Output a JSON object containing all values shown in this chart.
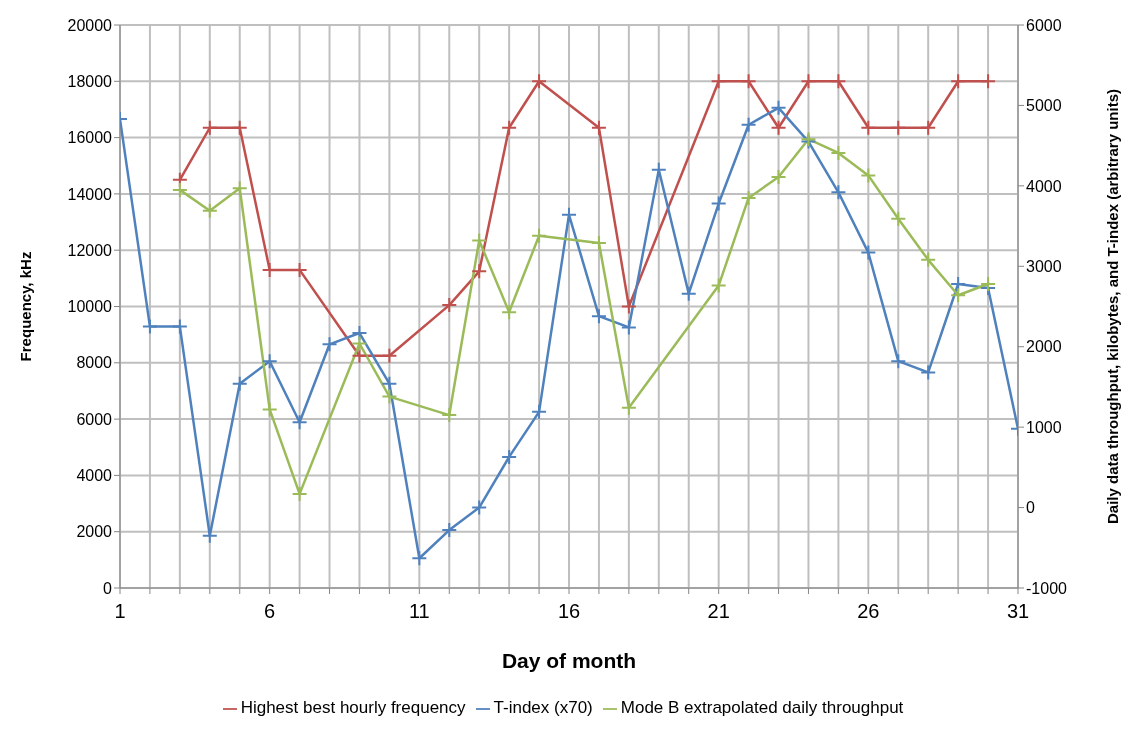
{
  "chart_data": {
    "type": "line",
    "xlabel": "Day of month",
    "ylabel": "Frequency, kHz",
    "y2label": "Daily data throughput, kilobytes, and T-index (arbitrary units)",
    "x": [
      1,
      2,
      3,
      4,
      5,
      6,
      7,
      8,
      9,
      10,
      11,
      12,
      13,
      14,
      15,
      16,
      17,
      18,
      19,
      20,
      21,
      22,
      23,
      24,
      25,
      26,
      27,
      28,
      29,
      30,
      31
    ],
    "series": [
      {
        "name": "Highest best hourly frequency",
        "color": "#c0504d",
        "values": [
          null,
          null,
          14500,
          16350,
          16350,
          11300,
          11300,
          null,
          8250,
          8250,
          null,
          10050,
          11250,
          16350,
          18000,
          null,
          16350,
          10000,
          null,
          null,
          18000,
          18000,
          16350,
          18000,
          18000,
          16350,
          16350,
          16350,
          18000,
          18000,
          null
        ]
      },
      {
        "name": "T-index (x70)",
        "color": "#4f81bd",
        "axis": "y2",
        "values": [
          4830,
          2250,
          2250,
          -350,
          1540,
          1820,
          1060,
          2030,
          2170,
          1540,
          -630,
          -280,
          0,
          630,
          1190,
          3640,
          2380,
          2240,
          4200,
          2660,
          3780,
          4760,
          4970,
          4550,
          3920,
          3170,
          1820,
          1680,
          2780,
          2730,
          980
        ]
      },
      {
        "name": "Mode B extrapolated daily throughput",
        "color": "#9bbb59",
        "axis": "y2",
        "values": [
          null,
          null,
          3950,
          3690,
          3970,
          1220,
          170,
          null,
          2040,
          1380,
          null,
          1150,
          3320,
          2430,
          3380,
          null,
          3290,
          1240,
          null,
          null,
          2760,
          3850,
          4110,
          4580,
          4410,
          4130,
          3590,
          3080,
          2640,
          2780,
          null
        ]
      }
    ],
    "xlim": [
      1,
      31
    ],
    "xticks": [
      1,
      {
        "value": 2,
        "label": null
      },
      {
        "value": 3,
        "label": null
      },
      {
        "value": 4,
        "label": null
      },
      {
        "value": 5,
        "label": null
      },
      6,
      {
        "value": 7,
        "label": null
      },
      {
        "value": 8,
        "label": null
      },
      {
        "value": 9,
        "label": null
      },
      {
        "value": 10,
        "label": null
      },
      11,
      {
        "value": 12,
        "label": null
      },
      {
        "value": 13,
        "label": null
      },
      {
        "value": 14,
        "label": null
      },
      {
        "value": 15,
        "label": null
      },
      16,
      {
        "value": 17,
        "label": null
      },
      {
        "value": 18,
        "label": null
      },
      {
        "value": 19,
        "label": null
      },
      {
        "value": 20,
        "label": null
      },
      21,
      {
        "value": 22,
        "label": null
      },
      {
        "value": 23,
        "label": null
      },
      {
        "value": 24,
        "label": null
      },
      {
        "value": 25,
        "label": null
      },
      26,
      {
        "value": 27,
        "label": null
      },
      {
        "value": 28,
        "label": null
      },
      {
        "value": 29,
        "label": null
      },
      {
        "value": 30,
        "label": null
      },
      31
    ],
    "ylim": [
      0,
      20000
    ],
    "yticks": [
      0,
      2000,
      4000,
      6000,
      8000,
      10000,
      12000,
      14000,
      16000,
      18000,
      20000
    ],
    "y2lim": [
      -1000,
      6000
    ],
    "y2ticks": [
      -1000,
      0,
      1000,
      2000,
      3000,
      4000,
      5000,
      6000
    ],
    "grid": true,
    "legend": "bottom",
    "marker": "cross",
    "line_style": "solid"
  }
}
